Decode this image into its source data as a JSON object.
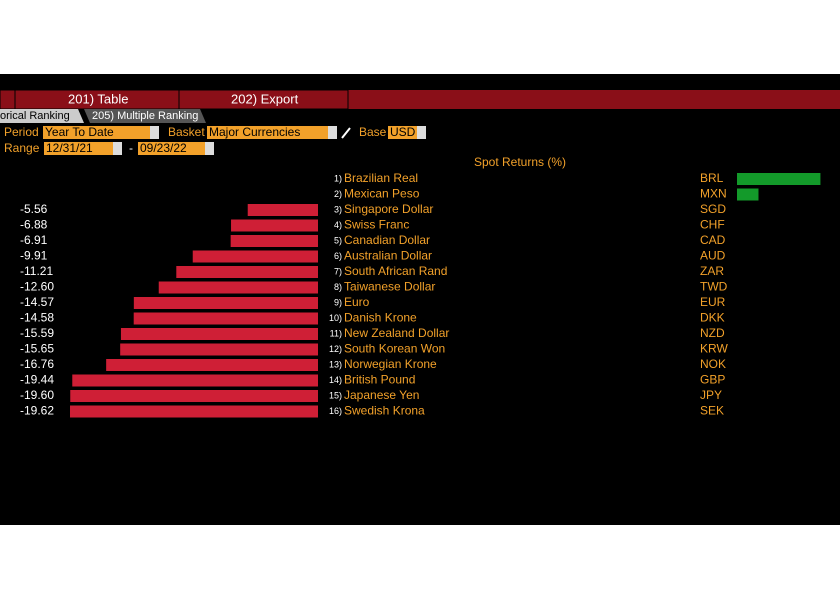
{
  "toolbar": {
    "buttons": [
      "201) Table",
      "202) Export"
    ]
  },
  "tabs": [
    "orical Ranking",
    "205) Multiple Ranking"
  ],
  "controls": {
    "period_label": "Period",
    "period": "Year To Date",
    "basket_label": "Basket",
    "basket": "Major Currencies",
    "base_label": "Base",
    "base": "USD",
    "range_label": "Range",
    "range_start": "12/31/21",
    "range_sep": "-",
    "range_end": "09/23/22"
  },
  "chart_data": {
    "type": "bar",
    "title": "Spot Returns (%)",
    "ranks": [
      "1)",
      "2)",
      "3)",
      "4)",
      "5)",
      "6)",
      "7)",
      "8)",
      "9)",
      "10)",
      "11)",
      "12)",
      "13)",
      "14)",
      "15)",
      "16)"
    ],
    "categories": [
      "Brazilian Real",
      "Mexican Peso",
      "Singapore Dollar",
      "Swiss Franc",
      "Canadian Dollar",
      "Australian Dollar",
      "South African Rand",
      "Taiwanese Dollar",
      "Euro",
      "Danish Krone",
      "New Zealand Dollar",
      "South Korean Won",
      "Norwegian Krone",
      "British Pound",
      "Japanese Yen",
      "Swedish Krona"
    ],
    "codes": [
      "BRL",
      "MXN",
      "SGD",
      "CHF",
      "CAD",
      "AUD",
      "ZAR",
      "TWD",
      "EUR",
      "DKK",
      "NZD",
      "KRW",
      "NOK",
      "GBP",
      "JPY",
      "SEK"
    ],
    "values": [
      6.6,
      1.7,
      -5.56,
      -6.88,
      -6.91,
      -9.91,
      -11.21,
      -12.6,
      -14.57,
      -14.58,
      -15.59,
      -15.65,
      -16.76,
      -19.44,
      -19.6,
      -19.62
    ],
    "value_labels": [
      null,
      null,
      "-5.56",
      "-6.88",
      "-6.91",
      "-9.91",
      "-11.21",
      "-12.60",
      "-14.57",
      "-14.58",
      "-15.59",
      "-15.65",
      "-16.76",
      "-19.44",
      "-19.60",
      "-19.62"
    ],
    "positive_color": "#139a2a",
    "negative_color": "#cf1f36"
  }
}
